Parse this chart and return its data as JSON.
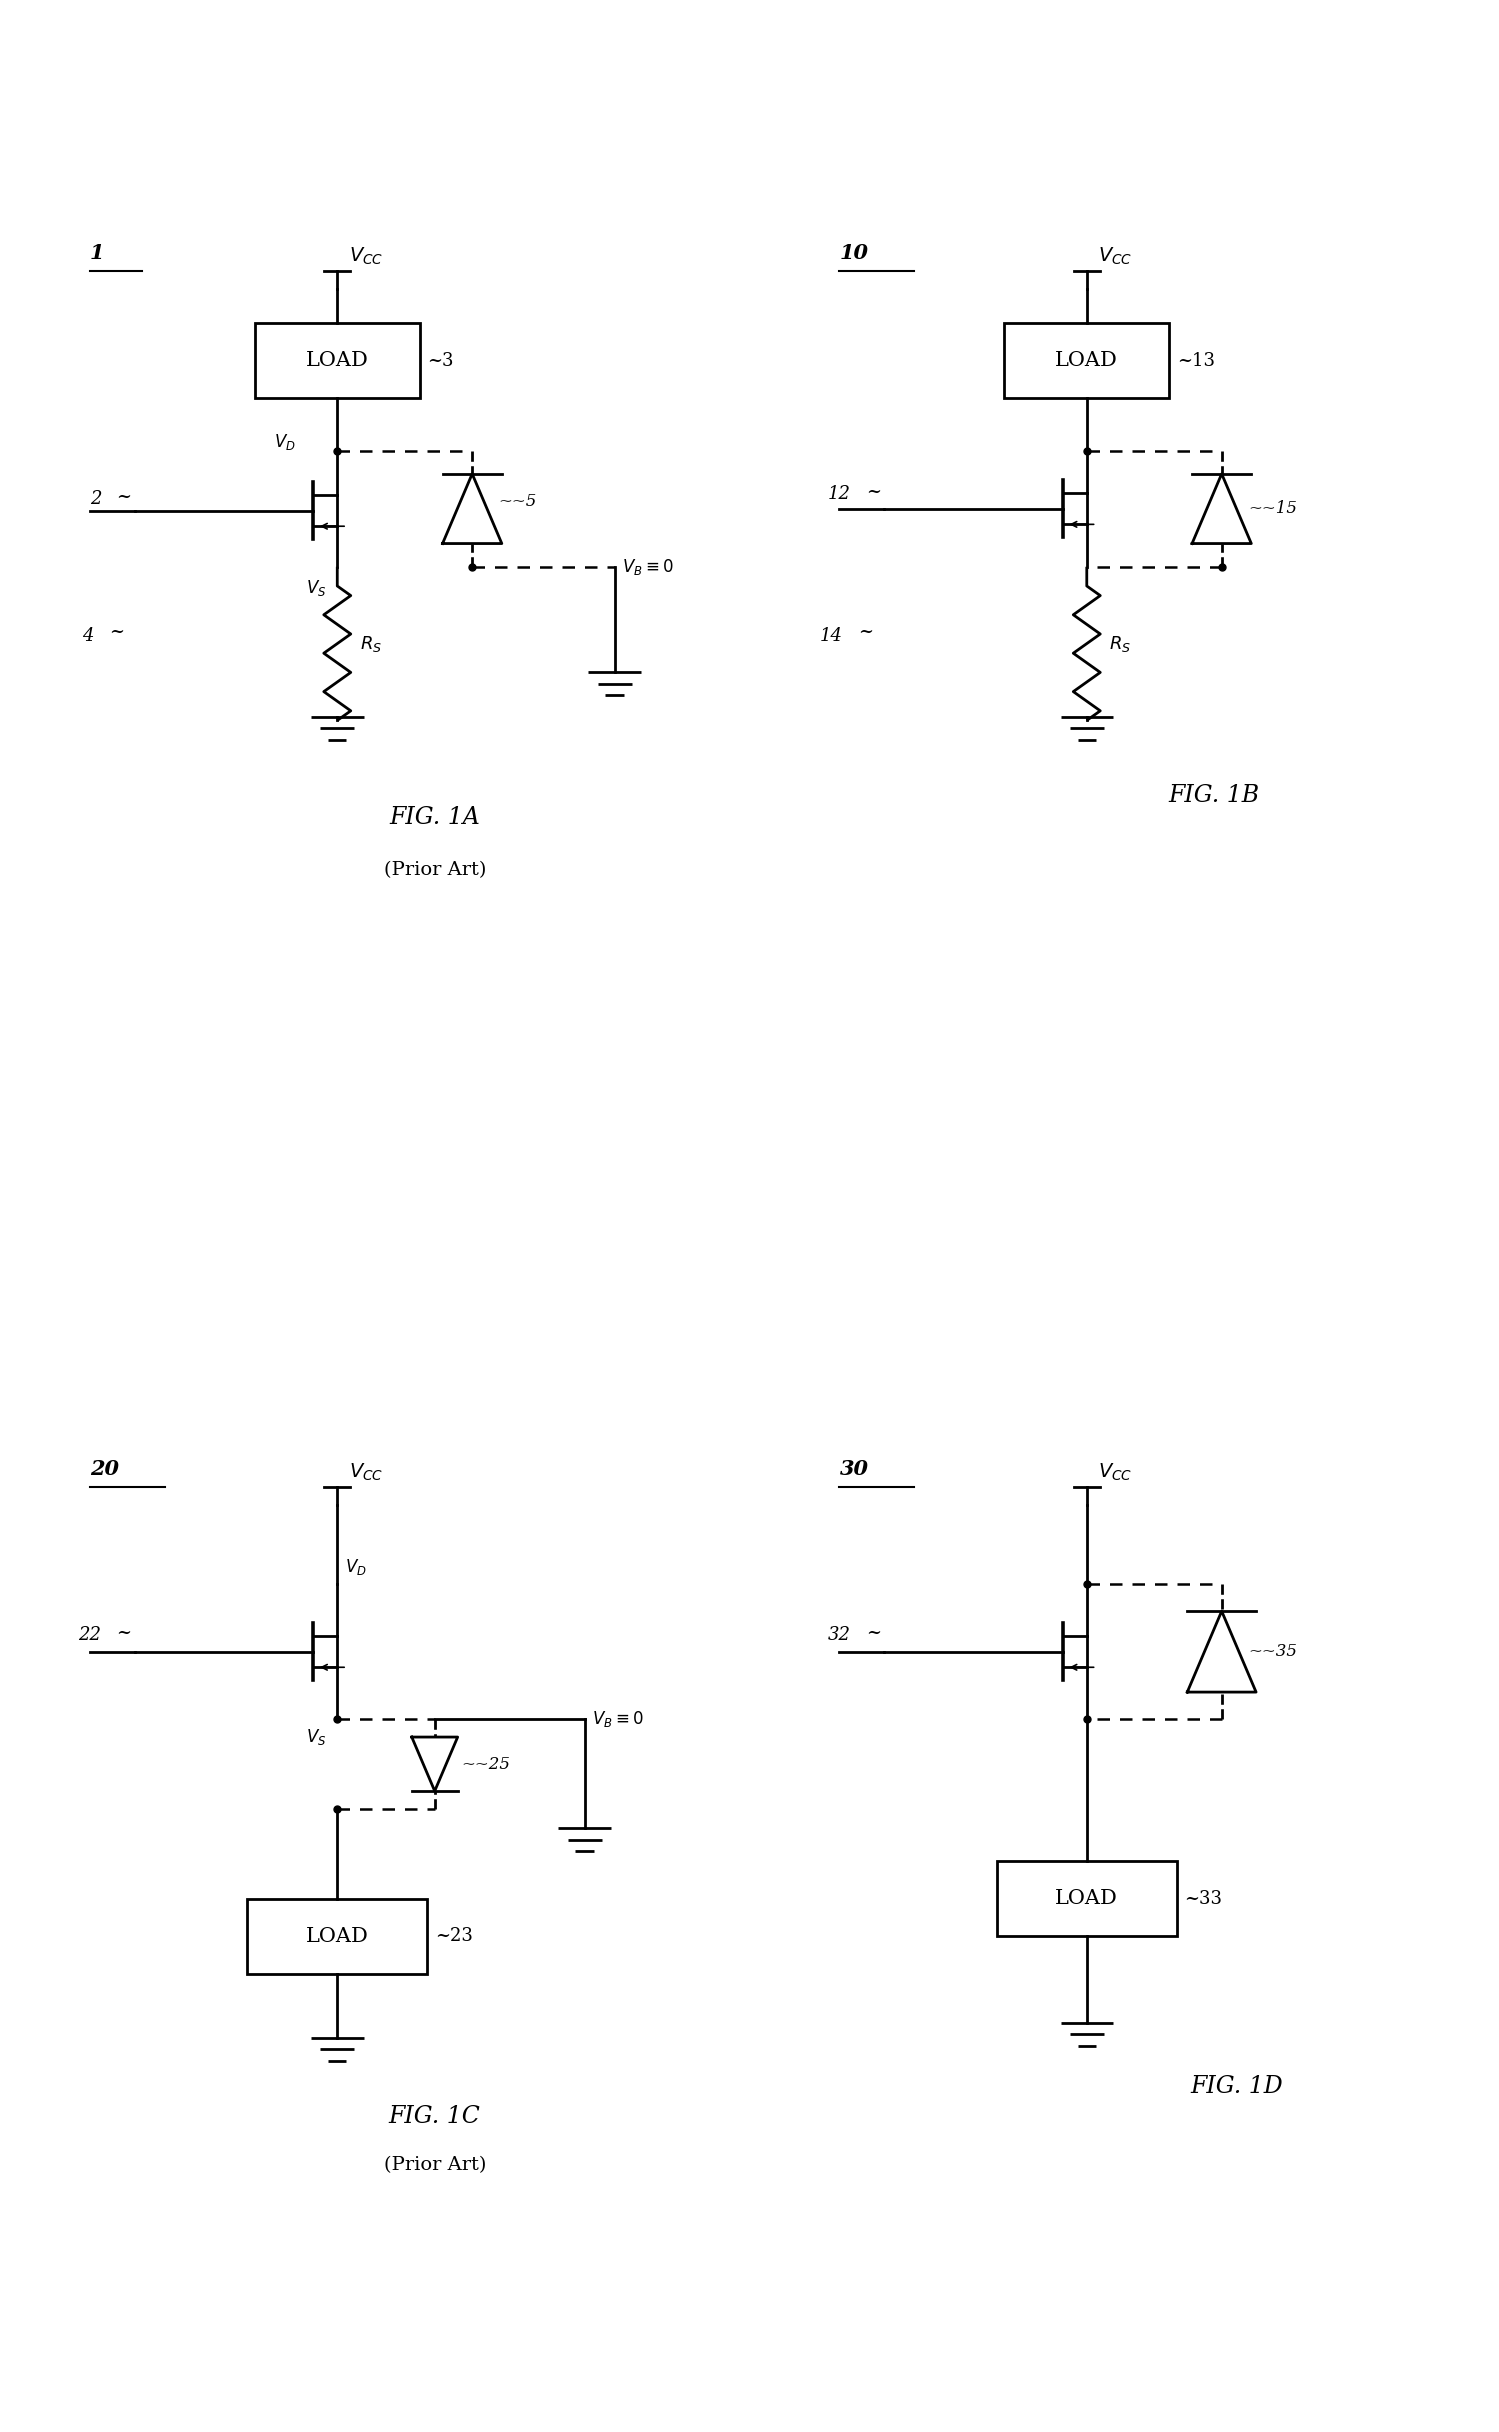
{
  "fig_width": 14.99,
  "fig_height": 24.32,
  "bg_color": "#ffffff",
  "lc": "#000000",
  "lw": 2.0,
  "dlw": 1.8,
  "panels": [
    {
      "label": "1",
      "caption": "FIG. 1A",
      "prior_art": true,
      "ox": 0.0,
      "oy": 0.5,
      "ow": 0.5,
      "oh": 0.5
    },
    {
      "label": "10",
      "caption": "FIG. 1B",
      "prior_art": false,
      "ox": 0.5,
      "oy": 0.5,
      "ow": 0.5,
      "oh": 0.5
    },
    {
      "label": "20",
      "caption": "FIG. 1C",
      "prior_art": true,
      "ox": 0.0,
      "oy": 0.0,
      "ow": 0.5,
      "oh": 0.5
    },
    {
      "label": "30",
      "caption": "FIG. 1D",
      "prior_art": false,
      "ox": 0.5,
      "oy": 0.0,
      "ow": 0.5,
      "oh": 0.5
    }
  ]
}
